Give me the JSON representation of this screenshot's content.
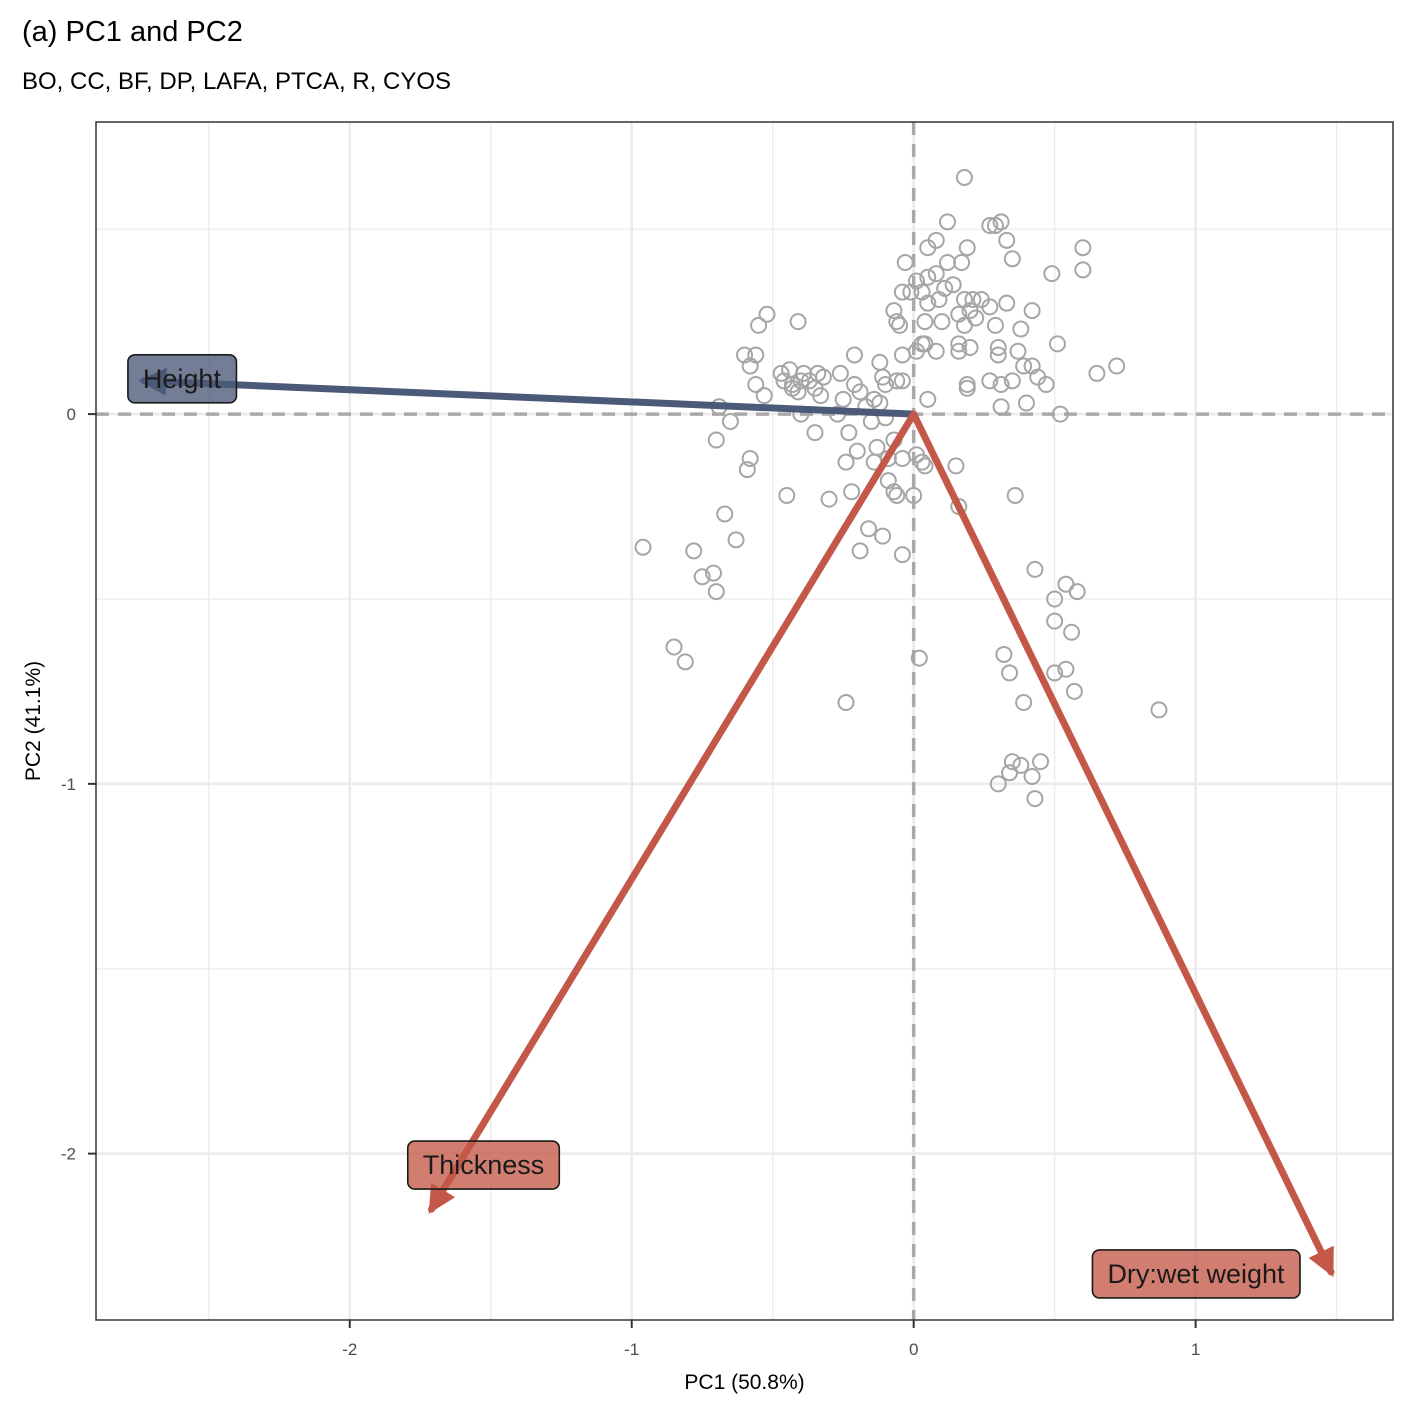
{
  "title": "(a) PC1 and PC2",
  "subtitle": "BO, CC, BF, DP, LAFA, PTCA, R, CYOS",
  "chart_data": {
    "type": "scatter",
    "xlabel": "PC1 (50.8%)",
    "ylabel": "PC2 (41.1%)",
    "xlim": [
      -2.9,
      1.7
    ],
    "ylim": [
      -2.45,
      0.79
    ],
    "x_ticks": [
      -2,
      -1,
      0,
      1
    ],
    "x_tick_labels": [
      "-2",
      "-1",
      "0",
      "1"
    ],
    "y_ticks": [
      -2,
      -1,
      0
    ],
    "y_tick_labels": [
      "-2",
      "-1",
      "0"
    ],
    "grid": true,
    "reference_lines": {
      "x": 0,
      "y": 0,
      "style": "dashed"
    },
    "point_color": "#a6a6a6",
    "points": [
      [
        0.18,
        0.64
      ],
      [
        0.12,
        0.52
      ],
      [
        0.27,
        0.51
      ],
      [
        0.29,
        0.51
      ],
      [
        0.31,
        0.52
      ],
      [
        0.33,
        0.47
      ],
      [
        0.08,
        0.47
      ],
      [
        0.05,
        0.45
      ],
      [
        0.19,
        0.45
      ],
      [
        0.35,
        0.42
      ],
      [
        0.6,
        0.45
      ],
      [
        0.6,
        0.39
      ],
      [
        0.49,
        0.38
      ],
      [
        -0.03,
        0.41
      ],
      [
        0.12,
        0.41
      ],
      [
        0.17,
        0.41
      ],
      [
        0.08,
        0.38
      ],
      [
        0.05,
        0.37
      ],
      [
        0.01,
        0.36
      ],
      [
        -0.04,
        0.33
      ],
      [
        -0.01,
        0.33
      ],
      [
        0.03,
        0.33
      ],
      [
        0.11,
        0.34
      ],
      [
        0.14,
        0.35
      ],
      [
        0.18,
        0.31
      ],
      [
        0.24,
        0.31
      ],
      [
        0.21,
        0.31
      ],
      [
        0.05,
        0.3
      ],
      [
        0.09,
        0.31
      ],
      [
        0.2,
        0.28
      ],
      [
        0.27,
        0.29
      ],
      [
        0.33,
        0.3
      ],
      [
        0.42,
        0.28
      ],
      [
        0.16,
        0.27
      ],
      [
        0.22,
        0.26
      ],
      [
        -0.07,
        0.28
      ],
      [
        -0.06,
        0.25
      ],
      [
        -0.05,
        0.24
      ],
      [
        0.04,
        0.25
      ],
      [
        0.1,
        0.25
      ],
      [
        0.18,
        0.24
      ],
      [
        0.29,
        0.24
      ],
      [
        0.38,
        0.23
      ],
      [
        0.03,
        0.19
      ],
      [
        0.04,
        0.19
      ],
      [
        0.16,
        0.19
      ],
      [
        0.2,
        0.18
      ],
      [
        0.3,
        0.18
      ],
      [
        0.37,
        0.17
      ],
      [
        0.51,
        0.19
      ],
      [
        0.01,
        0.17
      ],
      [
        0.08,
        0.17
      ],
      [
        0.16,
        0.17
      ],
      [
        0.3,
        0.16
      ],
      [
        0.39,
        0.13
      ],
      [
        0.42,
        0.13
      ],
      [
        0.65,
        0.11
      ],
      [
        0.72,
        0.13
      ],
      [
        -0.52,
        0.27
      ],
      [
        -0.55,
        0.24
      ],
      [
        -0.41,
        0.25
      ],
      [
        -0.6,
        0.16
      ],
      [
        -0.56,
        0.16
      ],
      [
        -0.58,
        0.13
      ],
      [
        -0.21,
        0.16
      ],
      [
        -0.12,
        0.14
      ],
      [
        -0.04,
        0.16
      ],
      [
        -0.47,
        0.11
      ],
      [
        -0.44,
        0.12
      ],
      [
        -0.39,
        0.11
      ],
      [
        -0.32,
        0.1
      ],
      [
        -0.34,
        0.11
      ],
      [
        -0.46,
        0.09
      ],
      [
        -0.43,
        0.08
      ],
      [
        -0.4,
        0.09
      ],
      [
        -0.37,
        0.09
      ],
      [
        -0.26,
        0.11
      ],
      [
        -0.21,
        0.08
      ],
      [
        -0.11,
        0.1
      ],
      [
        -0.1,
        0.08
      ],
      [
        -0.06,
        0.09
      ],
      [
        -0.04,
        0.09
      ],
      [
        -0.56,
        0.08
      ],
      [
        -0.43,
        0.07
      ],
      [
        -0.35,
        0.07
      ],
      [
        -0.41,
        0.06
      ],
      [
        -0.53,
        0.05
      ],
      [
        -0.33,
        0.05
      ],
      [
        -0.25,
        0.04
      ],
      [
        -0.19,
        0.06
      ],
      [
        -0.14,
        0.04
      ],
      [
        -0.12,
        0.03
      ],
      [
        0.05,
        0.04
      ],
      [
        0.19,
        0.07
      ],
      [
        0.27,
        0.09
      ],
      [
        0.31,
        0.08
      ],
      [
        0.35,
        0.09
      ],
      [
        0.44,
        0.1
      ],
      [
        0.47,
        0.08
      ],
      [
        0.19,
        0.08
      ],
      [
        0.4,
        0.03
      ],
      [
        0.31,
        0.02
      ],
      [
        0.52,
        0.0
      ],
      [
        -0.69,
        0.02
      ],
      [
        -0.4,
        0.0
      ],
      [
        -0.27,
        0.0
      ],
      [
        -0.17,
        0.02
      ],
      [
        -0.15,
        -0.02
      ],
      [
        -0.1,
        -0.01
      ],
      [
        -0.65,
        -0.02
      ],
      [
        -0.35,
        -0.05
      ],
      [
        -0.23,
        -0.05
      ],
      [
        -0.2,
        -0.1
      ],
      [
        -0.13,
        -0.09
      ],
      [
        -0.07,
        -0.07
      ],
      [
        -0.7,
        -0.07
      ],
      [
        -0.58,
        -0.12
      ],
      [
        -0.59,
        -0.15
      ],
      [
        -0.24,
        -0.13
      ],
      [
        -0.14,
        -0.13
      ],
      [
        -0.09,
        -0.12
      ],
      [
        -0.04,
        -0.12
      ],
      [
        0.01,
        -0.11
      ],
      [
        0.03,
        -0.13
      ],
      [
        0.04,
        -0.14
      ],
      [
        0.15,
        -0.14
      ],
      [
        -0.45,
        -0.22
      ],
      [
        -0.3,
        -0.23
      ],
      [
        -0.22,
        -0.21
      ],
      [
        -0.09,
        -0.18
      ],
      [
        -0.07,
        -0.21
      ],
      [
        -0.06,
        -0.22
      ],
      [
        0.0,
        -0.22
      ],
      [
        0.16,
        -0.25
      ],
      [
        0.36,
        -0.22
      ],
      [
        -0.67,
        -0.27
      ],
      [
        -0.63,
        -0.34
      ],
      [
        -0.96,
        -0.36
      ],
      [
        -0.78,
        -0.37
      ],
      [
        -0.75,
        -0.44
      ],
      [
        -0.71,
        -0.43
      ],
      [
        -0.7,
        -0.48
      ],
      [
        -0.16,
        -0.31
      ],
      [
        -0.11,
        -0.33
      ],
      [
        -0.19,
        -0.37
      ],
      [
        -0.04,
        -0.38
      ],
      [
        0.43,
        -0.42
      ],
      [
        0.54,
        -0.46
      ],
      [
        0.5,
        -0.5
      ],
      [
        0.58,
        -0.48
      ],
      [
        0.5,
        -0.56
      ],
      [
        0.56,
        -0.59
      ],
      [
        -0.85,
        -0.63
      ],
      [
        -0.81,
        -0.67
      ],
      [
        0.02,
        -0.66
      ],
      [
        0.32,
        -0.65
      ],
      [
        0.34,
        -0.7
      ],
      [
        0.5,
        -0.7
      ],
      [
        0.54,
        -0.69
      ],
      [
        0.57,
        -0.75
      ],
      [
        -0.24,
        -0.78
      ],
      [
        0.39,
        -0.78
      ],
      [
        0.87,
        -0.8
      ],
      [
        0.35,
        -0.94
      ],
      [
        0.38,
        -0.95
      ],
      [
        0.45,
        -0.94
      ],
      [
        0.34,
        -0.97
      ],
      [
        0.42,
        -0.98
      ],
      [
        0.3,
        -1.0
      ],
      [
        0.43,
        -1.04
      ]
    ],
    "vectors": [
      {
        "name": "Height",
        "x": -2.73,
        "y": 0.09,
        "color": "#4b5a78"
      },
      {
        "name": "Thickness",
        "x": -1.71,
        "y": -2.15,
        "color": "#c45848"
      },
      {
        "name": "Dry:wet weight",
        "x": 1.48,
        "y": -2.32,
        "color": "#c45848"
      }
    ]
  }
}
